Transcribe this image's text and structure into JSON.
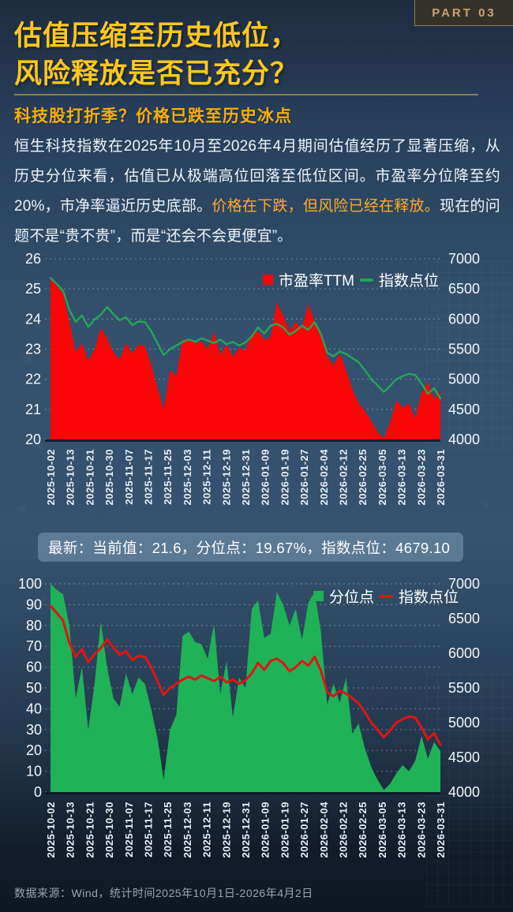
{
  "part_label": "PART 03",
  "title": {
    "line1": "估值压缩至历史低位，",
    "line2": "风险释放是否已充分？"
  },
  "subtitle": "科技股打折季？价格已跌至历史冰点",
  "paragraph": {
    "pre": "恒生科技指数在2025年10月至2026年4月期间估值经历了显著压缩，从历史分位来看，估值已从极端高位回落至低位区间。市盈率分位降至约20%，市净率逼近历史底部。",
    "highlight": "价格在下跌，但风险已经在释放。",
    "post": "现在的问题不是“贵不贵”，而是“还会不会更便宜”。"
  },
  "summary_bar": "最新：当前值：21.6，分位点：19.67%，指数点位：4679.10",
  "footer": "数据来源：Wind，统计时间2025年10月1日-2026年4月2日",
  "colors": {
    "title_gold": "#ffc71f",
    "subtitle_gold": "#f6ad0f",
    "highlight_orange": "#ffaa26",
    "divider_tan": "#8a7a55",
    "part_badge_text": "#c9a26b",
    "pe_area_red": "#fb0606",
    "index_line_green": "#25a457",
    "percentile_area_green": "#1fb257",
    "index_line_red": "#df1414",
    "summary_bar_bg": "rgba(156,186,214,0.38)"
  },
  "chart_data": [
    {
      "type": "area",
      "title": "",
      "legend_position": "top-right",
      "grid": "dashed",
      "x_labels": [
        "2025-10-02",
        "2025-10-13",
        "2025-10-21",
        "2025-10-30",
        "2025-11-07",
        "2025-11-17",
        "2025-11-25",
        "2025-12-03",
        "2025-12-11",
        "2025-12-19",
        "2025-12-31",
        "2026-01-09",
        "2026-01-19",
        "2026-01-27",
        "2026-02-04",
        "2026-02-12",
        "2026-02-25",
        "2026-03-05",
        "2026-03-13",
        "2026-03-23",
        "2026-03-31"
      ],
      "left_axis": {
        "min": 20,
        "max": 26,
        "step": 1
      },
      "right_axis": {
        "min": 4000,
        "max": 7000,
        "step": 500
      },
      "left_ticks": [
        26,
        25,
        24,
        23,
        22,
        21,
        20
      ],
      "right_ticks": [
        7000,
        6500,
        6000,
        5500,
        5000,
        4500,
        4000
      ],
      "series": [
        {
          "name": "市盈率TTM",
          "type": "area",
          "axis": "left",
          "color": "#fb0606",
          "values": [
            25.35,
            25.1,
            24.85,
            23.9,
            22.9,
            23.2,
            22.6,
            23.0,
            23.7,
            23.35,
            22.9,
            22.65,
            23.2,
            22.85,
            23.15,
            23.1,
            22.5,
            21.7,
            21.0,
            22.3,
            22.1,
            23.3,
            23.35,
            23.2,
            23.25,
            23.0,
            23.55,
            22.8,
            23.15,
            22.75,
            23.05,
            22.95,
            23.5,
            23.6,
            23.3,
            23.4,
            24.55,
            24.1,
            23.6,
            23.9,
            23.7,
            24.5,
            23.9,
            23.5,
            22.75,
            22.45,
            22.85,
            22.3,
            21.65,
            21.2,
            20.95,
            20.6,
            20.25,
            20.05,
            20.55,
            21.3,
            21.05,
            21.2,
            20.7,
            21.55,
            21.9,
            21.35,
            21.6
          ]
        },
        {
          "name": "指数点位",
          "type": "line",
          "axis": "right",
          "color": "#25a457",
          "width": 2.4,
          "values": [
            6680,
            6580,
            6470,
            6150,
            5950,
            6060,
            5870,
            5990,
            6070,
            6200,
            6080,
            5980,
            6030,
            5900,
            5960,
            5950,
            5800,
            5600,
            5400,
            5500,
            5560,
            5620,
            5660,
            5620,
            5680,
            5640,
            5600,
            5660,
            5580,
            5620,
            5560,
            5610,
            5710,
            5860,
            5760,
            5890,
            5920,
            5860,
            5740,
            5800,
            5890,
            5820,
            5950,
            5750,
            5440,
            5380,
            5460,
            5420,
            5350,
            5280,
            5150,
            5000,
            4900,
            4790,
            4890,
            5000,
            5050,
            5090,
            5070,
            4930,
            4760,
            4850,
            4679
          ]
        }
      ]
    },
    {
      "type": "area",
      "title": "",
      "legend_position": "top-right",
      "grid": "dashed",
      "x_labels": [
        "2025-10-02",
        "2025-10-13",
        "2025-10-21",
        "2025-10-30",
        "2025-11-07",
        "2025-11-17",
        "2025-11-25",
        "2025-12-03",
        "2025-12-11",
        "2025-12-19",
        "2025-12-31",
        "2026-01-09",
        "2026-01-19",
        "2026-01-27",
        "2026-02-04",
        "2026-02-12",
        "2026-02-25",
        "2026-03-05",
        "2026-03-13",
        "2026-03-23",
        "2026-03-31"
      ],
      "left_axis": {
        "min": 0,
        "max": 100,
        "step": 10
      },
      "right_axis": {
        "min": 4000,
        "max": 7000,
        "step": 500
      },
      "left_ticks": [
        100,
        90,
        80,
        70,
        60,
        50,
        40,
        30,
        20,
        10,
        0
      ],
      "right_ticks": [
        7000,
        6500,
        6000,
        5500,
        5000,
        4500,
        4000
      ],
      "series": [
        {
          "name": "分位点",
          "type": "area",
          "axis": "left",
          "color": "#1fb257",
          "values": [
            100,
            97,
            95,
            80,
            45,
            60,
            30,
            52,
            82,
            60,
            45,
            41,
            57,
            47,
            55,
            52,
            40,
            26,
            6,
            30,
            37,
            75,
            77,
            72,
            71,
            64,
            81,
            47,
            63,
            36,
            55,
            50,
            88,
            92,
            74,
            76,
            96,
            90,
            80,
            88,
            73,
            91,
            96,
            77,
            42,
            52,
            43,
            55,
            28,
            33,
            21,
            12,
            6,
            1,
            4,
            9,
            13,
            10,
            15,
            27,
            16,
            24,
            19.67
          ]
        },
        {
          "name": "指数点位",
          "type": "line",
          "axis": "right",
          "color": "#df1414",
          "width": 3,
          "values": [
            6680,
            6580,
            6470,
            6150,
            5950,
            6060,
            5870,
            5990,
            6070,
            6200,
            6080,
            5980,
            6030,
            5900,
            5960,
            5950,
            5800,
            5600,
            5400,
            5500,
            5560,
            5620,
            5660,
            5620,
            5680,
            5640,
            5600,
            5660,
            5580,
            5620,
            5560,
            5610,
            5710,
            5860,
            5760,
            5890,
            5920,
            5860,
            5740,
            5800,
            5890,
            5820,
            5950,
            5750,
            5440,
            5380,
            5460,
            5420,
            5350,
            5280,
            5150,
            5000,
            4900,
            4790,
            4890,
            5000,
            5050,
            5090,
            5070,
            4930,
            4760,
            4850,
            4679
          ]
        }
      ]
    }
  ]
}
